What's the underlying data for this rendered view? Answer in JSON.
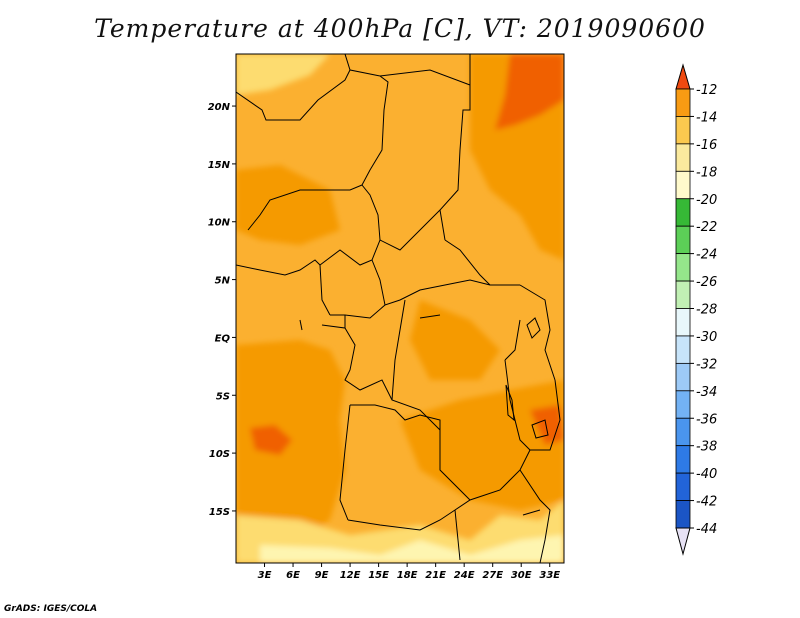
{
  "title": "Temperature at 400hPa [C], VT: 2019090600",
  "credit": "GrADS: IGES/COLA",
  "map": {
    "lon_range": [
      0,
      34.5
    ],
    "lat_range": [
      -19.5,
      24.5
    ],
    "lat_ticks": [
      {
        "value": 20,
        "label": "20N"
      },
      {
        "value": 15,
        "label": "15N"
      },
      {
        "value": 10,
        "label": "10N"
      },
      {
        "value": 5,
        "label": "5N"
      },
      {
        "value": 0,
        "label": "EQ"
      },
      {
        "value": -5,
        "label": "5S"
      },
      {
        "value": -10,
        "label": "10S"
      },
      {
        "value": -15,
        "label": "15S"
      }
    ],
    "lon_ticks": [
      {
        "value": 3,
        "label": "3E"
      },
      {
        "value": 6,
        "label": "6E"
      },
      {
        "value": 9,
        "label": "9E"
      },
      {
        "value": 12,
        "label": "12E"
      },
      {
        "value": 15,
        "label": "15E"
      },
      {
        "value": 18,
        "label": "18E"
      },
      {
        "value": 21,
        "label": "21E"
      },
      {
        "value": 24,
        "label": "24E"
      },
      {
        "value": 27,
        "label": "27E"
      },
      {
        "value": 30,
        "label": "30E"
      },
      {
        "value": 33,
        "label": "33E"
      }
    ],
    "field_colors": {
      "warmest": "#f06000",
      "warm": "#f59a00",
      "mid": "#fbb030",
      "cool": "#fddc70",
      "coolest": "#fef5b0"
    }
  },
  "colorbar": {
    "bins": [
      {
        "color": "#fbea9e"
      },
      {
        "color": "#fbc94f"
      },
      {
        "color": "#f9ae32"
      },
      {
        "color": "#f89b13"
      },
      {
        "color": "#f06100"
      }
    ],
    "upper": [
      {
        "color": "#fffacc",
        "label": "-22"
      },
      {
        "color": "#fbea9e",
        "label": "-20"
      },
      {
        "color": "#fbc94f",
        "label": "-18"
      },
      {
        "color": "#f9ae32",
        "label": "-16"
      },
      {
        "color": "#f89b13",
        "label": "-14"
      },
      {
        "color": "#f06100",
        "label": "-12"
      }
    ],
    "levels": [
      {
        "color": "#0a1577",
        "label": "-44"
      },
      {
        "color": "#1b55c5",
        "label": "-42"
      },
      {
        "color": "#2264d9",
        "label": "-40"
      },
      {
        "color": "#2e7ae6",
        "label": "-38"
      },
      {
        "color": "#4a95ee",
        "label": "-36"
      },
      {
        "color": "#73b2f4",
        "label": "-34"
      },
      {
        "color": "#9dcaf7",
        "label": "-32"
      },
      {
        "color": "#c7e4fa",
        "label": "-30"
      },
      {
        "color": "#e8f7fb",
        "label": "-28"
      },
      {
        "color": "#c1f0b4",
        "label": "-26"
      },
      {
        "color": "#95e68b",
        "label": "-24"
      },
      {
        "color": "#5ccf57",
        "label": "-22"
      },
      {
        "color": "#36b936",
        "label": ""
      },
      {
        "color": "#fffacc",
        "label": "-20"
      },
      {
        "color": "#fbea9e",
        "label": "-18"
      },
      {
        "color": "#fbc94f",
        "label": "-16"
      },
      {
        "color": "#f89b13",
        "label": "-14"
      },
      {
        "color": "#f06100",
        "label": "-12"
      }
    ],
    "low_end_color": "#e7e2f5",
    "high_end_color": "#f04a10"
  }
}
